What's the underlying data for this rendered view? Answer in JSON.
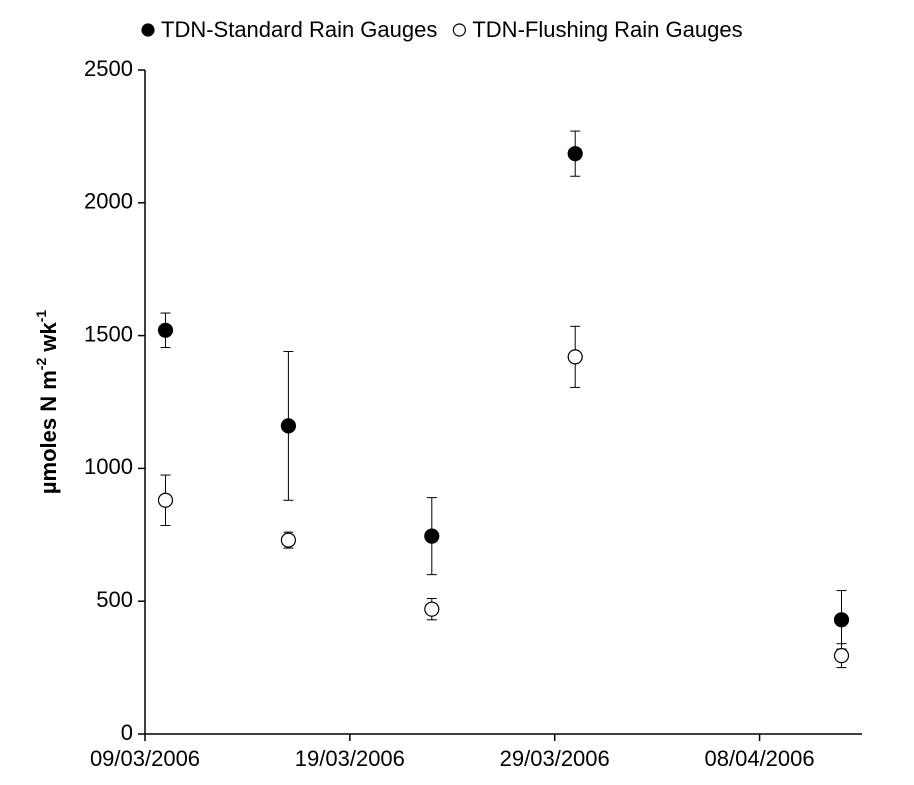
{
  "chart_data": {
    "type": "scatter",
    "ylabel": [
      "µmoles N m",
      "-2",
      " wk",
      "-1"
    ],
    "x": [
      "10/03/2006",
      "16/03/2006",
      "23/03/2006",
      "30/03/2006",
      "12/04/2006"
    ],
    "series": [
      {
        "name": "TDN-Standard Rain Gauges",
        "color": "#000000",
        "values": [
          1520,
          1160,
          745,
          2185,
          430
        ],
        "errors": [
          65,
          280,
          145,
          85,
          110
        ]
      },
      {
        "name": "TDN-Flushing Rain Gauges",
        "color": "#ffffff",
        "values": [
          880,
          730,
          470,
          1420,
          295
        ],
        "errors": [
          95,
          30,
          40,
          115,
          45
        ]
      }
    ],
    "xlim": [
      "09/03/2006",
      "13/04/2006"
    ],
    "xticks": [
      "09/03/2006",
      "19/03/2006",
      "29/03/2006",
      "08/04/2006"
    ],
    "ylim": [
      0,
      2500
    ],
    "yticks": [
      0,
      500,
      1000,
      1500,
      2000,
      2500
    ],
    "grid": false,
    "legend": "top"
  }
}
